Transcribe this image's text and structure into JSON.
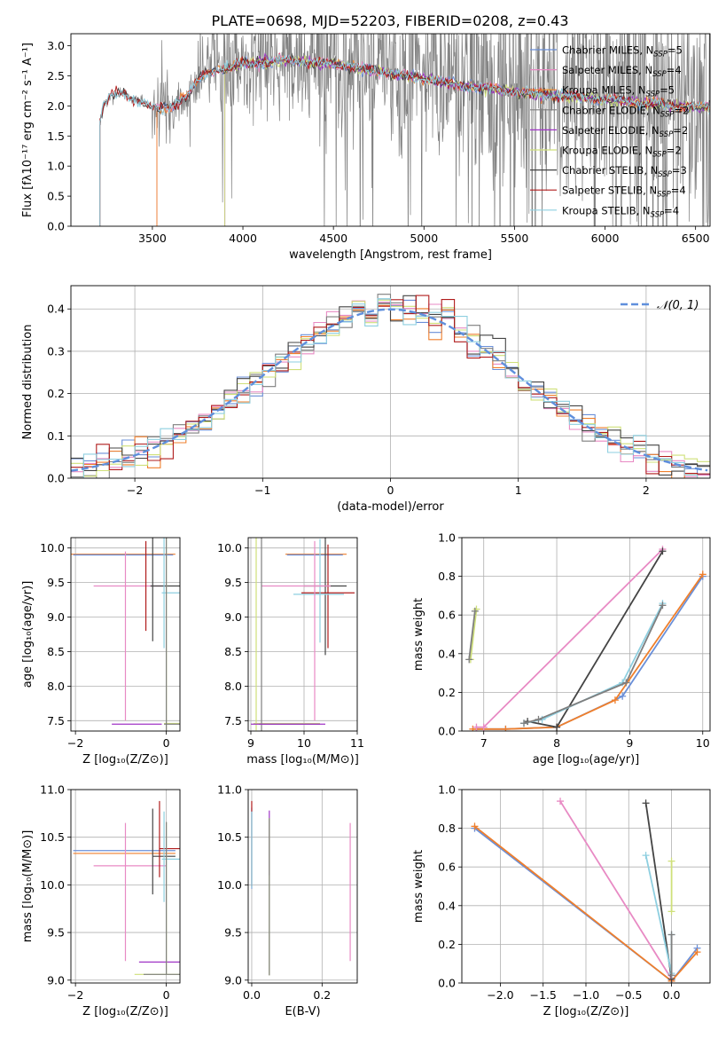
{
  "figure_title": "PLATE=0698, MJD=52203, FIBERID=0208, z=0.43",
  "colors": {
    "chabrier_miles": "#6a8fd8",
    "salpeter_miles": "#e88ac4",
    "kroupa_miles": "#ef7f2c",
    "chabrier_elodie": "#7f7f7f",
    "salpeter_elodie": "#a035c6",
    "kroupa_elodie": "#cfe07a",
    "chabrier_stelib": "#444444",
    "salpeter_stelib": "#b01c1c",
    "kroupa_stelib": "#8ecfe0",
    "gaussian": "#5f8fdc",
    "grid": "#b0b0b0"
  },
  "legend": [
    {
      "label": "Chabrier MILES, N",
      "sub": "SSP",
      "tail": "=5",
      "color_key": "chabrier_miles"
    },
    {
      "label": "Salpeter MILES, N",
      "sub": "SSP",
      "tail": "=4",
      "color_key": "salpeter_miles"
    },
    {
      "label": "Kroupa MILES, N",
      "sub": "SSP",
      "tail": "=5",
      "color_key": "kroupa_miles"
    },
    {
      "label": "Chabrier ELODIE, N",
      "sub": "SSP",
      "tail": "=2",
      "color_key": "chabrier_elodie"
    },
    {
      "label": "Salpeter ELODIE, N",
      "sub": "SSP",
      "tail": "=2",
      "color_key": "salpeter_elodie"
    },
    {
      "label": "Kroupa ELODIE, N",
      "sub": "SSP",
      "tail": "=2",
      "color_key": "kroupa_elodie"
    },
    {
      "label": "Chabrier STELIB, N",
      "sub": "SSP",
      "tail": "=3",
      "color_key": "chabrier_stelib"
    },
    {
      "label": "Salpeter STELIB, N",
      "sub": "SSP",
      "tail": "=4",
      "color_key": "salpeter_stelib"
    },
    {
      "label": "Kroupa STELIB, N",
      "sub": "SSP",
      "tail": "=4",
      "color_key": "kroupa_stelib"
    }
  ],
  "chart_data": [
    {
      "id": "spectrum",
      "type": "line",
      "xlabel": "wavelength [Angstrom, rest frame]",
      "ylabel": "Flux [fλ10⁻¹⁷ erg cm⁻² s⁻¹ A⁻¹]",
      "xlim": [
        3050,
        6580
      ],
      "ylim": [
        0,
        3.2
      ],
      "xticks": [
        3500,
        4000,
        4500,
        5000,
        5500,
        6000,
        6500
      ],
      "yticks": [
        0.0,
        0.5,
        1.0,
        1.5,
        2.0,
        2.5,
        3.0
      ],
      "grid": false,
      "legend_position": "top-right",
      "continuum": {
        "x": [
          3210,
          3230,
          3260,
          3300,
          3350,
          3400,
          3450,
          3500,
          3550,
          3600,
          3650,
          3700,
          3750,
          3800,
          3850,
          3900,
          3950,
          4000,
          4100,
          4200,
          4300,
          4400,
          4500,
          4600,
          4700,
          4800,
          4900,
          5000,
          5100,
          5200,
          5300,
          5400,
          5500,
          5600,
          5700,
          5800,
          5900,
          6000,
          6100,
          6200,
          6300,
          6400,
          6500,
          6580
        ],
        "y": [
          1.75,
          2.0,
          2.15,
          2.2,
          2.18,
          2.12,
          2.05,
          1.98,
          1.95,
          1.98,
          2.08,
          2.2,
          2.4,
          2.55,
          2.6,
          2.62,
          2.65,
          2.7,
          2.72,
          2.75,
          2.75,
          2.72,
          2.7,
          2.65,
          2.6,
          2.55,
          2.5,
          2.45,
          2.4,
          2.35,
          2.3,
          2.28,
          2.25,
          2.2,
          2.18,
          2.15,
          2.13,
          2.1,
          2.08,
          2.05,
          2.03,
          2.0,
          1.98,
          1.97
        ]
      },
      "series_start_x": {
        "miles": 3525,
        "elodie": 3900,
        "stelib": 3210
      }
    },
    {
      "id": "residuals",
      "type": "histogram",
      "xlabel": "(data-model)/error",
      "ylabel": "Normed distribution",
      "xlim": [
        -2.5,
        2.5
      ],
      "ylim": [
        0,
        0.455
      ],
      "xticks": [
        -2,
        -1,
        0,
        1,
        2
      ],
      "yticks": [
        0.0,
        0.1,
        0.2,
        0.3,
        0.4
      ],
      "grid": true,
      "bin_width": 0.1,
      "gaussian_label": "𝒩(0, 1)",
      "legend_position": "top-right"
    },
    {
      "id": "age_vs_z",
      "type": "errorbar",
      "xlabel": "Z [log₁₀(Z/Z⊙)]",
      "ylabel": "age  [log₁₀(age/yr)]",
      "xlim": [
        -2.1,
        0.3
      ],
      "ylim": [
        7.35,
        10.15
      ],
      "xticks": [
        -2,
        0
      ],
      "xticklabels": [
        "−2",
        "0"
      ],
      "yticks": [
        7.5,
        8.0,
        8.5,
        9.0,
        9.5,
        10.0
      ],
      "grid": true,
      "series": [
        {
          "color_key": "kroupa_miles",
          "x": -0.6,
          "xerr": [
            1.5,
            0.8
          ],
          "y": 9.91,
          "yerr": [
            0,
            0
          ]
        },
        {
          "color_key": "chabrier_miles",
          "x": -0.6,
          "xerr": [
            1.45,
            0.75
          ],
          "y": 9.9,
          "yerr": [
            0,
            0
          ]
        },
        {
          "color_key": "salpeter_miles",
          "x": -0.9,
          "xerr": [
            0.7,
            0.9
          ],
          "y": 9.45,
          "yerr": [
            1.95,
            0.5
          ]
        },
        {
          "color_key": "chabrier_stelib",
          "x": -0.3,
          "xerr": [
            0.05,
            0.6
          ],
          "y": 9.45,
          "yerr": [
            0.8,
            0.7
          ]
        },
        {
          "color_key": "salpeter_stelib",
          "x": -0.45,
          "xerr": [
            0,
            0
          ],
          "y": 9.4,
          "yerr": [
            0.6,
            0.7
          ]
        },
        {
          "color_key": "kroupa_stelib",
          "x": -0.05,
          "xerr": [
            0.05,
            0.6
          ],
          "y": 9.35,
          "yerr": [
            0.8,
            0.8
          ]
        },
        {
          "color_key": "kroupa_elodie",
          "x": 0.0,
          "xerr": [
            0.05,
            0.5
          ],
          "y": 7.46,
          "yerr": [
            0.1,
            2.7
          ]
        },
        {
          "color_key": "chabrier_elodie",
          "x": 0.0,
          "xerr": [
            0.05,
            0.4
          ],
          "y": 7.45,
          "yerr": [
            0.1,
            2.7
          ]
        },
        {
          "color_key": "salpeter_elodie",
          "x": -0.6,
          "xerr": [
            0.6,
            0.5
          ],
          "y": 7.45,
          "yerr": [
            0,
            0
          ]
        }
      ]
    },
    {
      "id": "age_vs_mass",
      "type": "errorbar",
      "xlabel": "mass [log₁₀(M/M⊙)]",
      "ylabel": "",
      "xlim": [
        8.95,
        11.0
      ],
      "ylim": [
        7.35,
        10.15
      ],
      "xticks": [
        9,
        10,
        11
      ],
      "yticks": [
        7.5,
        8.0,
        8.5,
        9.0,
        9.5,
        10.0
      ],
      "grid": true,
      "series": [
        {
          "color_key": "kroupa_miles",
          "x": 10.3,
          "xerr": [
            0.65,
            0.5
          ],
          "y": 9.91,
          "yerr": [
            0,
            0
          ]
        },
        {
          "color_key": "chabrier_miles",
          "x": 10.28,
          "xerr": [
            0.6,
            0.45
          ],
          "y": 9.9,
          "yerr": [
            0,
            0
          ]
        },
        {
          "color_key": "chabrier_stelib",
          "x": 10.4,
          "xerr": [
            0.4,
            0.4
          ],
          "y": 9.45,
          "yerr": [
            1.0,
            0.7
          ]
        },
        {
          "color_key": "salpeter_stelib",
          "x": 10.45,
          "xerr": [
            0.5,
            0.5
          ],
          "y": 9.35,
          "yerr": [
            0.8,
            0.7
          ]
        },
        {
          "color_key": "kroupa_stelib",
          "x": 10.3,
          "xerr": [
            0.5,
            0.45
          ],
          "y": 9.33,
          "yerr": [
            0.7,
            0.8
          ]
        },
        {
          "color_key": "salpeter_miles",
          "x": 10.2,
          "xerr": [
            1.0,
            0.3
          ],
          "y": 9.45,
          "yerr": [
            1.95,
            0.65
          ]
        },
        {
          "color_key": "kroupa_elodie",
          "x": 9.1,
          "xerr": [
            0.05,
            1.2
          ],
          "y": 7.46,
          "yerr": [
            0.1,
            2.7
          ]
        },
        {
          "color_key": "chabrier_elodie",
          "x": 9.2,
          "xerr": [
            0.05,
            1.1
          ],
          "y": 7.45,
          "yerr": [
            0.1,
            2.7
          ]
        },
        {
          "color_key": "salpeter_elodie",
          "x": 9.6,
          "xerr": [
            0.6,
            0.8
          ],
          "y": 7.45,
          "yerr": [
            0,
            0
          ]
        }
      ]
    },
    {
      "id": "weight_vs_age",
      "type": "line",
      "xlabel": "age  [log₁₀(age/yr)]",
      "ylabel": "mass weight",
      "xlim": [
        6.7,
        10.1
      ],
      "ylim": [
        0,
        1.0
      ],
      "xticks": [
        7,
        8,
        9,
        10
      ],
      "yticks": [
        0.0,
        0.2,
        0.4,
        0.6,
        0.8,
        1.0
      ],
      "grid": true,
      "series": [
        {
          "color_key": "chabrier_miles",
          "x": [
            6.9,
            7.3,
            8.0,
            8.9,
            10.0
          ],
          "y": [
            0.01,
            0.01,
            0.02,
            0.18,
            0.8
          ]
        },
        {
          "color_key": "kroupa_miles",
          "x": [
            6.85,
            7.3,
            8.0,
            8.8,
            10.0
          ],
          "y": [
            0.01,
            0.01,
            0.02,
            0.16,
            0.81
          ]
        },
        {
          "color_key": "salpeter_miles",
          "x": [
            6.9,
            7.0,
            9.45
          ],
          "y": [
            0.02,
            0.02,
            0.94
          ]
        },
        {
          "color_key": "chabrier_stelib",
          "x": [
            7.6,
            8.0,
            9.45
          ],
          "y": [
            0.05,
            0.02,
            0.93
          ]
        },
        {
          "color_key": "kroupa_stelib",
          "x": [
            7.55,
            7.8,
            8.9,
            9.45
          ],
          "y": [
            0.04,
            0.06,
            0.25,
            0.66
          ]
        },
        {
          "color_key": "chabrier_elodie",
          "x": [
            7.55,
            7.75,
            8.95,
            9.45
          ],
          "y": [
            0.04,
            0.06,
            0.25,
            0.65
          ]
        },
        {
          "color_key": "kroupa_elodie",
          "x": [
            6.82,
            6.9
          ],
          "y": [
            0.37,
            0.63
          ]
        },
        {
          "color_key": "chabrier_elodie",
          "x": [
            6.8,
            6.88
          ],
          "y": [
            0.37,
            0.62
          ]
        }
      ]
    },
    {
      "id": "mass_vs_z",
      "type": "errorbar",
      "xlabel": "Z [log₁₀(Z/Z⊙)]",
      "ylabel": "mass [log₁₀(M/M⊙)]",
      "xlim": [
        -2.1,
        0.3
      ],
      "ylim": [
        8.97,
        11.0
      ],
      "xticks": [
        -2,
        0
      ],
      "xticklabels": [
        "−2",
        "0"
      ],
      "yticks": [
        9.0,
        9.5,
        10.0,
        10.5,
        11.0
      ],
      "grid": true,
      "series": [
        {
          "color_key": "chabrier_miles",
          "x": -0.6,
          "xerr": [
            1.45,
            0.8
          ],
          "y": 10.36,
          "yerr": [
            0,
            0
          ]
        },
        {
          "color_key": "kroupa_miles",
          "x": -0.6,
          "xerr": [
            1.45,
            0.8
          ],
          "y": 10.33,
          "yerr": [
            0,
            0
          ]
        },
        {
          "color_key": "salpeter_miles",
          "x": -0.9,
          "xerr": [
            0.7,
            0.9
          ],
          "y": 10.2,
          "yerr": [
            1.0,
            0.45
          ]
        },
        {
          "color_key": "chabrier_stelib",
          "x": -0.3,
          "xerr": [
            0,
            0.5
          ],
          "y": 10.3,
          "yerr": [
            0.4,
            0.5
          ]
        },
        {
          "color_key": "salpeter_stelib",
          "x": -0.15,
          "xerr": [
            0,
            0.5
          ],
          "y": 10.38,
          "yerr": [
            0.3,
            0.5
          ]
        },
        {
          "color_key": "kroupa_stelib",
          "x": -0.05,
          "xerr": [
            0.05,
            0.4
          ],
          "y": 10.27,
          "yerr": [
            0.45,
            0.5
          ]
        },
        {
          "color_key": "salpeter_elodie",
          "x": 0.0,
          "xerr": [
            0.6,
            0.6
          ],
          "y": 9.19,
          "yerr": [
            0,
            0
          ]
        },
        {
          "color_key": "kroupa_elodie",
          "x": 0.0,
          "xerr": [
            0.7,
            0.6
          ],
          "y": 9.06,
          "yerr": [
            0,
            1.6
          ]
        },
        {
          "color_key": "chabrier_elodie",
          "x": 0.0,
          "xerr": [
            0.5,
            0.6
          ],
          "y": 9.06,
          "yerr": [
            0,
            1.6
          ]
        }
      ]
    },
    {
      "id": "mass_vs_ebv",
      "type": "errorbar",
      "xlabel": "E(B-V)",
      "ylabel": "",
      "xlim": [
        -0.01,
        0.3
      ],
      "ylim": [
        8.97,
        11.0
      ],
      "xticks": [
        0.0,
        0.2
      ],
      "xticklabels": [
        "0.0",
        "0.2"
      ],
      "yticks": [
        9.0,
        9.5,
        10.0,
        10.5,
        11.0
      ],
      "grid": true,
      "series": [
        {
          "color_key": "chabrier_miles",
          "x": 0.0,
          "y": 10.36,
          "yerr": [
            0.4,
            0.45
          ]
        },
        {
          "color_key": "salpeter_stelib",
          "x": 0.0,
          "y": 10.38,
          "yerr": [
            0.4,
            0.5
          ]
        },
        {
          "color_key": "kroupa_stelib",
          "x": 0.0,
          "y": 10.27,
          "yerr": [
            0.3,
            0.5
          ]
        },
        {
          "color_key": "salpeter_elodie",
          "x": 0.05,
          "y": 10.6,
          "yerr": [
            0.5,
            0.18
          ]
        },
        {
          "color_key": "kroupa_elodie",
          "x": 0.05,
          "y": 10.4,
          "yerr": [
            1.35,
            0.3
          ]
        },
        {
          "color_key": "chabrier_elodie",
          "x": 0.05,
          "y": 10.45,
          "yerr": [
            1.4,
            0.25
          ]
        },
        {
          "color_key": "salpeter_miles",
          "x": 0.28,
          "y": 10.2,
          "yerr": [
            1.0,
            0.45
          ]
        }
      ]
    },
    {
      "id": "weight_vs_z",
      "type": "line",
      "xlabel": "Z [log₁₀(Z/Z⊙)]",
      "ylabel": "mass weight",
      "xlim": [
        -2.45,
        0.45
      ],
      "ylim": [
        0,
        1.0
      ],
      "xticks": [
        -2.0,
        -1.5,
        -1.0,
        -0.5,
        0.0
      ],
      "xticklabels": [
        "−2.0",
        "−1.5",
        "−1.0",
        "−0.5",
        "0.0"
      ],
      "yticks": [
        0.0,
        0.2,
        0.4,
        0.6,
        0.8,
        1.0
      ],
      "grid": true,
      "series": [
        {
          "color_key": "chabrier_miles",
          "x": [
            -2.3,
            0.0,
            0.3
          ],
          "y": [
            0.8,
            0.01,
            0.18
          ]
        },
        {
          "color_key": "kroupa_miles",
          "x": [
            -2.3,
            0.0,
            0.3
          ],
          "y": [
            0.81,
            0.01,
            0.16
          ]
        },
        {
          "color_key": "salpeter_miles",
          "x": [
            -1.3,
            0.0
          ],
          "y": [
            0.94,
            0.02
          ]
        },
        {
          "color_key": "chabrier_stelib",
          "x": [
            -0.3,
            0.0
          ],
          "y": [
            0.93,
            0.02
          ]
        },
        {
          "color_key": "kroupa_stelib",
          "x": [
            -0.3,
            0.0,
            0.0
          ],
          "y": [
            0.66,
            0.05,
            0.25
          ]
        },
        {
          "color_key": "kroupa_elodie",
          "x": [
            0.0,
            0.0
          ],
          "y": [
            0.37,
            0.63
          ]
        },
        {
          "color_key": "chabrier_elodie",
          "x": [
            0.0,
            0.0
          ],
          "y": [
            0.04,
            0.25
          ]
        }
      ]
    }
  ]
}
